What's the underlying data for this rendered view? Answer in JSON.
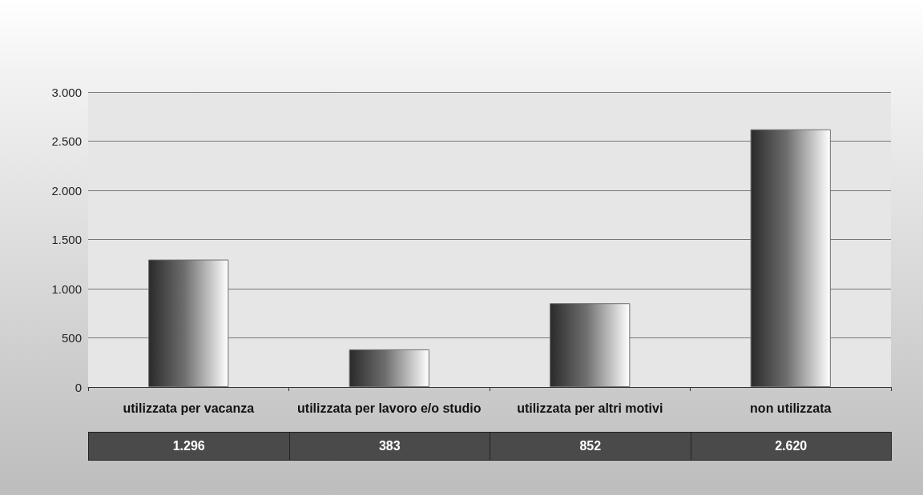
{
  "chart_data": {
    "type": "bar",
    "categories": [
      "utilizzata per vacanza",
      "utilizzata per lavoro e/o studio",
      "utilizzata per altri motivi",
      "non utilizzata"
    ],
    "values": [
      1296,
      383,
      852,
      2620
    ],
    "value_labels": [
      "1.296",
      "383",
      "852",
      "2.620"
    ],
    "color": "#6e6e6e",
    "ylim": [
      0,
      3000
    ],
    "yticks": [
      {
        "value": 0,
        "label": "0"
      },
      {
        "value": 500,
        "label": "500"
      },
      {
        "value": 1000,
        "label": "1.000"
      },
      {
        "value": 1500,
        "label": "1.500"
      },
      {
        "value": 2000,
        "label": "2.000"
      },
      {
        "value": 2500,
        "label": "2.500"
      },
      {
        "value": 3000,
        "label": "3.000"
      }
    ],
    "grid": "y"
  }
}
